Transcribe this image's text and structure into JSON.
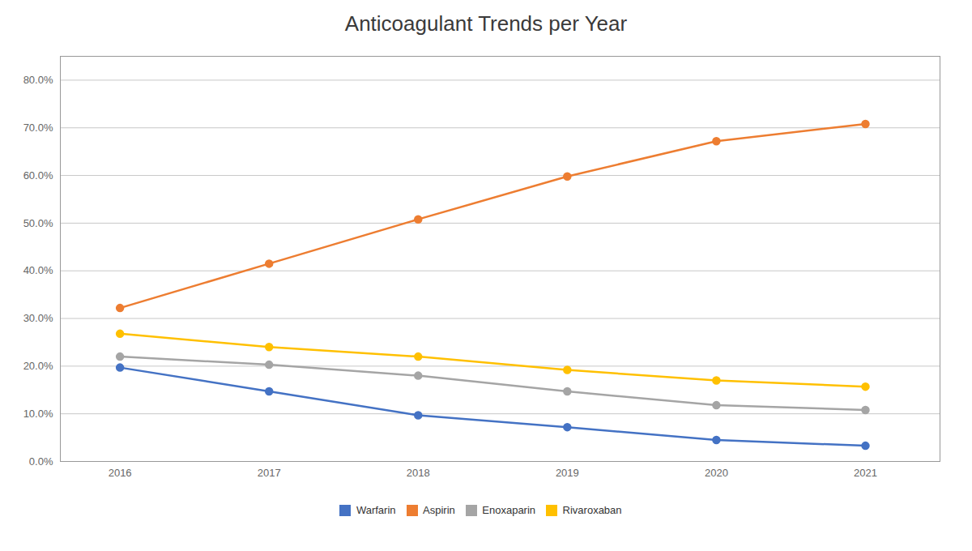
{
  "chart_data": {
    "type": "line",
    "title": "Anticoagulant Trends per Year",
    "x": [
      2016,
      2017,
      2018,
      2019,
      2020,
      2021
    ],
    "series": [
      {
        "name": "Warfarin",
        "color": "#4472C4",
        "marker": "circle",
        "values": [
          0.197,
          0.147,
          0.097,
          0.072,
          0.045,
          0.033
        ]
      },
      {
        "name": "Aspirin",
        "color": "#ED7D31",
        "marker": "circle",
        "values": [
          0.322,
          0.415,
          0.508,
          0.598,
          0.672,
          0.708
        ]
      },
      {
        "name": "Enoxaparin",
        "color": "#A5A5A5",
        "marker": "circle",
        "values": [
          0.22,
          0.203,
          0.18,
          0.147,
          0.118,
          0.108
        ]
      },
      {
        "name": "Rivaroxaban",
        "color": "#FFC000",
        "marker": "circle",
        "values": [
          0.268,
          0.24,
          0.22,
          0.192,
          0.17,
          0.157
        ]
      }
    ],
    "xlim": [
      2015.6,
      2021.5
    ],
    "xticks": [
      2016,
      2017,
      2018,
      2019,
      2020,
      2021
    ],
    "ylim": [
      0.0,
      0.85
    ],
    "yticks": [
      {
        "value": 0.0,
        "label": "0.0%"
      },
      {
        "value": 0.1,
        "label": "10.0%"
      },
      {
        "value": 0.2,
        "label": "20.0%"
      },
      {
        "value": 0.3,
        "label": "30.0%"
      },
      {
        "value": 0.4,
        "label": "40.0%"
      },
      {
        "value": 0.5,
        "label": "50.0%"
      },
      {
        "value": 0.6,
        "label": "60.0%"
      },
      {
        "value": 0.7,
        "label": "70.0%"
      },
      {
        "value": 0.8,
        "label": "80.0%"
      }
    ],
    "grid": true,
    "legend": "bottom"
  }
}
